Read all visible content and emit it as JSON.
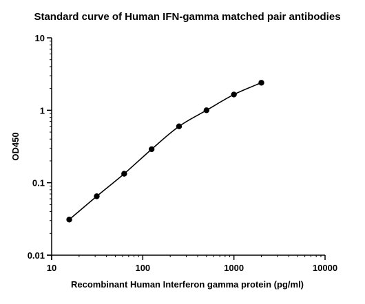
{
  "chart_data": {
    "type": "scatter",
    "title": "Standard curve of Human IFN-gamma matched pair antibodies",
    "xlabel": "Recombinant Human Interferon gamma protein (pg/ml)",
    "ylabel": "OD450",
    "x_scale": "log",
    "y_scale": "log",
    "xlim": [
      10,
      10000
    ],
    "ylim": [
      0.01,
      10
    ],
    "x_ticks": [
      10,
      100,
      1000,
      10000
    ],
    "x_tick_labels": [
      "10",
      "100",
      "1000",
      "10000"
    ],
    "y_ticks": [
      0.01,
      0.1,
      1,
      10
    ],
    "y_tick_labels": [
      "0.01",
      "0.1",
      "1",
      "10"
    ],
    "grid": false,
    "legend": "none",
    "marker_color": "#000000",
    "line_color": "#000000",
    "fitted_curve": true,
    "series": [
      {
        "x": [
          15.6,
          31.25,
          62.5,
          125,
          250,
          500,
          1000,
          2000
        ],
        "y": [
          0.031,
          0.065,
          0.133,
          0.29,
          0.6,
          1.0,
          1.65,
          2.4
        ]
      }
    ]
  }
}
